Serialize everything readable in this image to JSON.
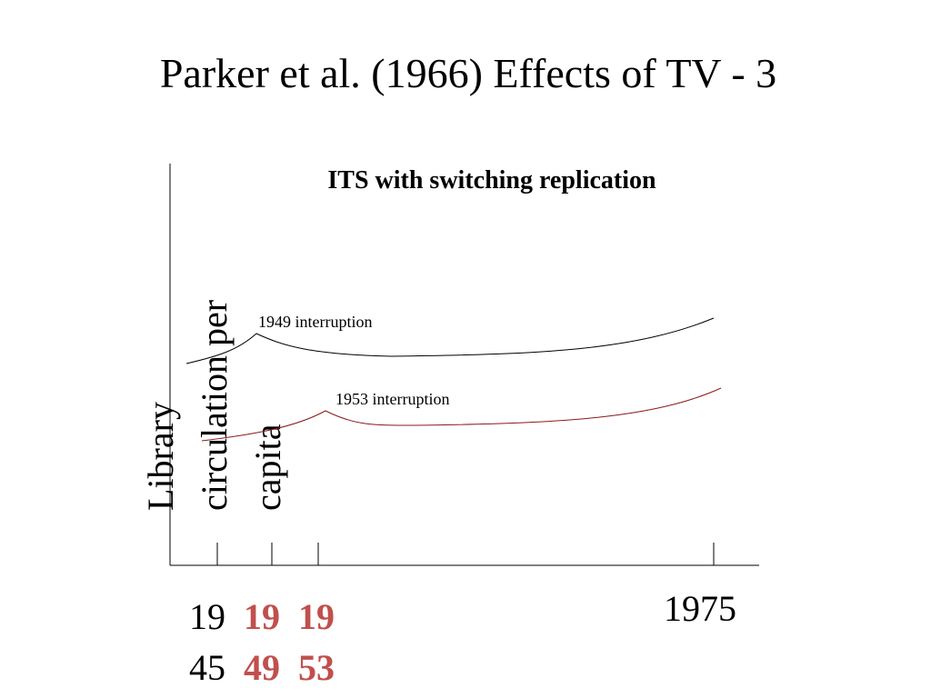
{
  "title": "Parker et al. (1966) Effects of TV - 3",
  "diagram": {
    "subtitle": "ITS with switching replication",
    "y_axis_label": [
      "Library",
      "circulation per",
      "capita"
    ],
    "annotations": [
      "1949 interruption",
      "1953 interruption"
    ],
    "x_labels": [
      {
        "lines": [
          "19",
          "45"
        ]
      },
      {
        "lines": [
          "19",
          "49"
        ]
      },
      {
        "lines": [
          "19",
          "53"
        ]
      },
      {
        "lines": [
          "1975"
        ]
      }
    ]
  }
}
